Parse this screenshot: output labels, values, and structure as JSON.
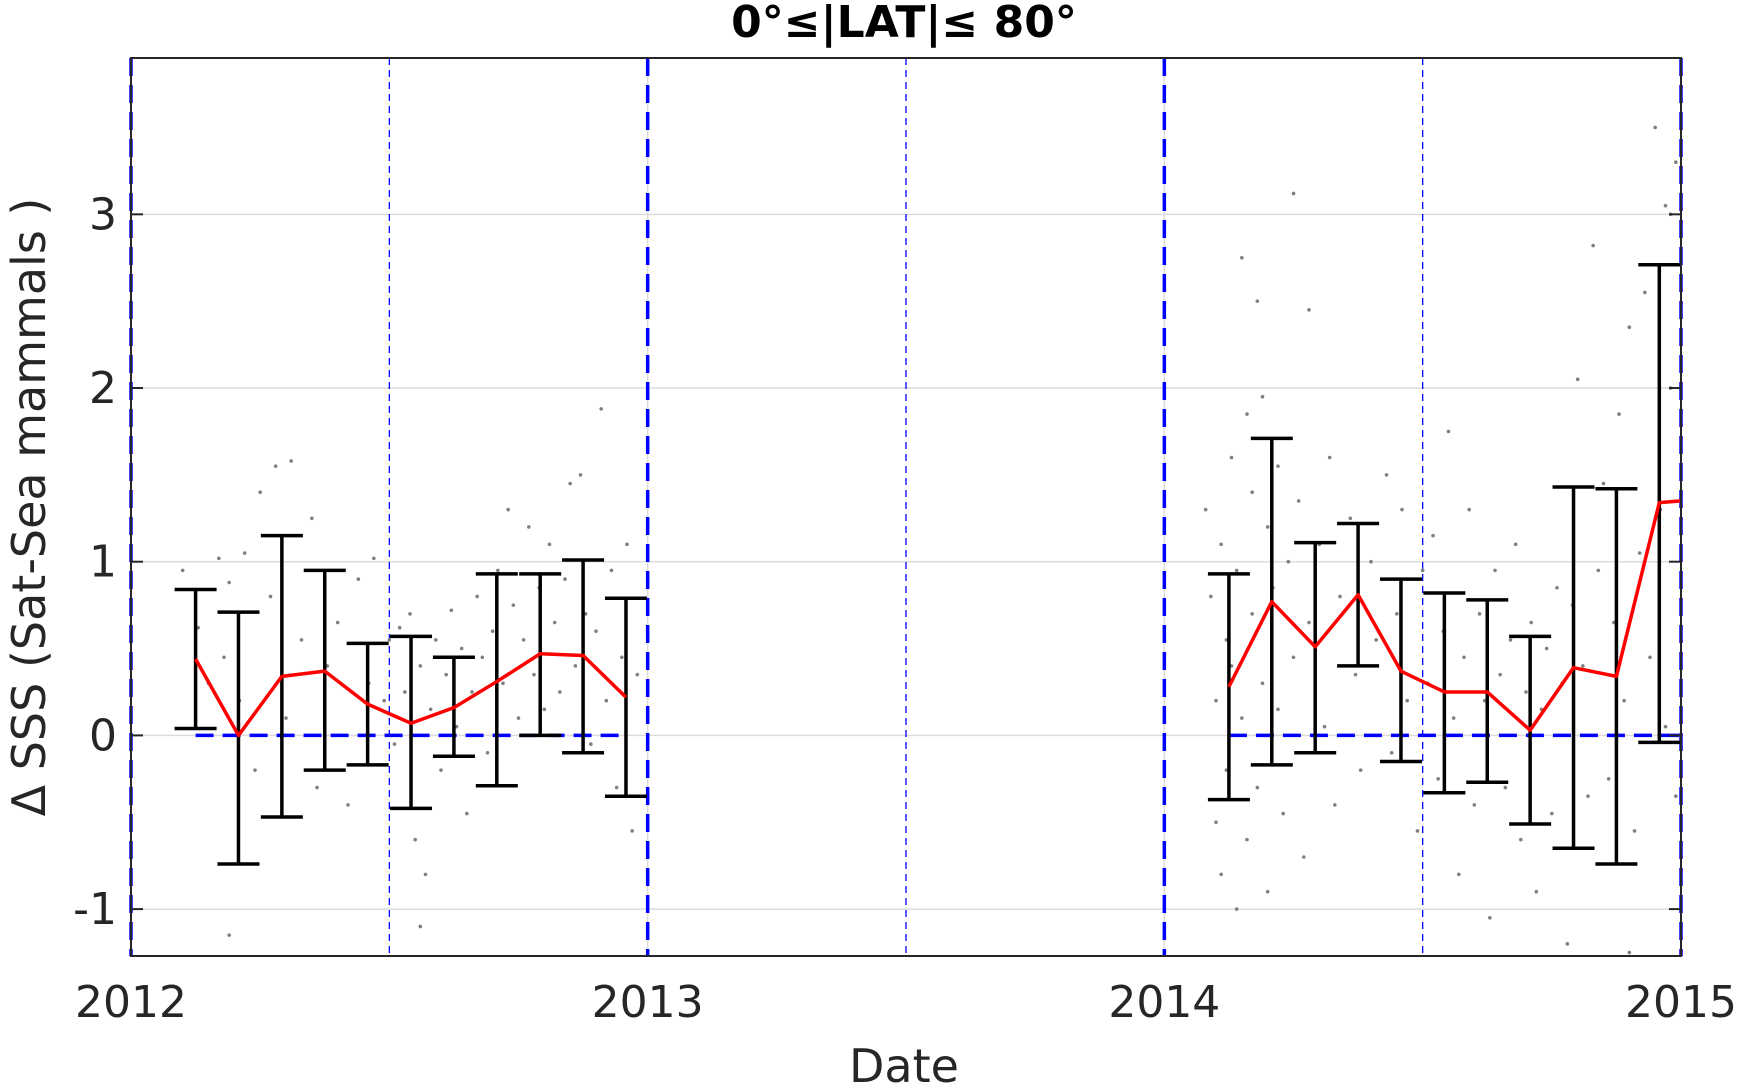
{
  "chart_data": {
    "type": "scatter",
    "title": "0°≤|LAT|≤ 80°",
    "xlabel": "Date",
    "ylabel": "Δ SSS (Sat-Sea mammals )",
    "xlim": [
      2012,
      2015
    ],
    "ylim": [
      -1.27,
      3.9
    ],
    "x_ticks": [
      "2012",
      "2013",
      "2014",
      "2015"
    ],
    "y_ticks": [
      "-1",
      "0",
      "1",
      "2",
      "3"
    ],
    "grid": true,
    "legend": "none",
    "year_boundaries": [
      2012,
      2013,
      2014,
      2015
    ],
    "half_year_lines": [
      2012.5,
      2013.5,
      2014.5
    ],
    "zero_line": 0,
    "series": [
      {
        "kind": "errorbar",
        "color": "#000000",
        "points": [
          {
            "x": 2012.125,
            "low": 0.04,
            "high": 0.84
          },
          {
            "x": 2012.208,
            "low": -0.74,
            "high": 0.71
          },
          {
            "x": 2012.292,
            "low": -0.47,
            "high": 1.15
          },
          {
            "x": 2012.375,
            "low": -0.2,
            "high": 0.95
          },
          {
            "x": 2012.458,
            "low": -0.17,
            "high": 0.53
          },
          {
            "x": 2012.542,
            "low": -0.42,
            "high": 0.57
          },
          {
            "x": 2012.625,
            "low": -0.12,
            "high": 0.45
          },
          {
            "x": 2012.708,
            "low": -0.29,
            "high": 0.93
          },
          {
            "x": 2012.792,
            "low": 0.0,
            "high": 0.93
          },
          {
            "x": 2012.875,
            "low": -0.1,
            "high": 1.01
          },
          {
            "x": 2012.958,
            "low": -0.35,
            "high": 0.79
          },
          {
            "x": 2014.125,
            "low": -0.37,
            "high": 0.93
          },
          {
            "x": 2014.208,
            "low": -0.17,
            "high": 1.71
          },
          {
            "x": 2014.292,
            "low": -0.1,
            "high": 1.11
          },
          {
            "x": 2014.375,
            "low": 0.4,
            "high": 1.22
          },
          {
            "x": 2014.458,
            "low": -0.15,
            "high": 0.9
          },
          {
            "x": 2014.542,
            "low": -0.33,
            "high": 0.82
          },
          {
            "x": 2014.625,
            "low": -0.27,
            "high": 0.78
          },
          {
            "x": 2014.708,
            "low": -0.51,
            "high": 0.57
          },
          {
            "x": 2014.792,
            "low": -0.65,
            "high": 1.43
          },
          {
            "x": 2014.875,
            "low": -0.74,
            "high": 1.42
          },
          {
            "x": 2014.958,
            "low": -0.04,
            "high": 2.71
          }
        ]
      },
      {
        "kind": "line",
        "color": "#ff0000",
        "segments": [
          {
            "x": [
              2012.125,
              2012.208,
              2012.292,
              2012.375,
              2012.458,
              2012.542,
              2012.625,
              2012.708,
              2012.792,
              2012.875,
              2012.958
            ],
            "y": [
              0.44,
              0.0,
              0.34,
              0.37,
              0.18,
              0.07,
              0.16,
              0.31,
              0.47,
              0.46,
              0.22
            ]
          },
          {
            "x": [
              2014.125,
              2014.208,
              2014.292,
              2014.375,
              2014.458,
              2014.542,
              2014.625,
              2014.708,
              2014.792,
              2014.875,
              2014.958,
              2015.0
            ],
            "y": [
              0.28,
              0.77,
              0.51,
              0.81,
              0.37,
              0.25,
              0.25,
              0.03,
              0.39,
              0.34,
              1.34,
              1.35
            ]
          }
        ]
      },
      {
        "kind": "scatter",
        "color": "#808080",
        "points": [
          [
            2012.1,
            0.95
          ],
          [
            2012.13,
            0.62
          ],
          [
            2012.15,
            0.3
          ],
          [
            2012.17,
            1.02
          ],
          [
            2012.18,
            0.45
          ],
          [
            2012.19,
            0.88
          ],
          [
            2012.21,
            0.2
          ],
          [
            2012.22,
            1.05
          ],
          [
            2012.24,
            -0.2
          ],
          [
            2012.19,
            -1.15
          ],
          [
            2012.25,
            1.4
          ],
          [
            2012.27,
            0.8
          ],
          [
            2012.28,
            1.55
          ],
          [
            2012.3,
            0.1
          ],
          [
            2012.31,
            1.58
          ],
          [
            2012.33,
            0.55
          ],
          [
            2012.35,
            1.25
          ],
          [
            2012.36,
            -0.3
          ],
          [
            2012.38,
            0.4
          ],
          [
            2012.4,
            0.65
          ],
          [
            2012.42,
            -0.4
          ],
          [
            2012.44,
            0.9
          ],
          [
            2012.46,
            0.3
          ],
          [
            2012.47,
            1.02
          ],
          [
            2012.49,
            0.2
          ],
          [
            2012.5,
            0.55
          ],
          [
            2012.51,
            -0.05
          ],
          [
            2012.52,
            0.62
          ],
          [
            2012.53,
            0.25
          ],
          [
            2012.54,
            0.7
          ],
          [
            2012.55,
            -0.6
          ],
          [
            2012.56,
            0.4
          ],
          [
            2012.57,
            -0.8
          ],
          [
            2012.58,
            0.15
          ],
          [
            2012.59,
            0.55
          ],
          [
            2012.6,
            -0.2
          ],
          [
            2012.61,
            0.35
          ],
          [
            2012.62,
            0.72
          ],
          [
            2012.63,
            0.05
          ],
          [
            2012.64,
            0.5
          ],
          [
            2012.65,
            -0.45
          ],
          [
            2012.66,
            0.25
          ],
          [
            2012.67,
            0.8
          ],
          [
            2012.68,
            0.45
          ],
          [
            2012.69,
            -0.1
          ],
          [
            2012.7,
            0.6
          ],
          [
            2012.71,
            0.95
          ],
          [
            2012.72,
            0.3
          ],
          [
            2012.73,
            1.3
          ],
          [
            2012.74,
            0.75
          ],
          [
            2012.75,
            0.1
          ],
          [
            2012.76,
            0.55
          ],
          [
            2012.77,
            1.2
          ],
          [
            2012.78,
            0.35
          ],
          [
            2012.79,
            0.85
          ],
          [
            2012.8,
            0.15
          ],
          [
            2012.81,
            1.1
          ],
          [
            2012.82,
            0.65
          ],
          [
            2012.83,
            0.25
          ],
          [
            2012.84,
            0.9
          ],
          [
            2012.85,
            1.45
          ],
          [
            2012.86,
            0.4
          ],
          [
            2012.87,
            1.5
          ],
          [
            2012.88,
            0.7
          ],
          [
            2012.89,
            -0.05
          ],
          [
            2012.9,
            0.6
          ],
          [
            2012.91,
            1.88
          ],
          [
            2012.92,
            0.2
          ],
          [
            2012.93,
            0.95
          ],
          [
            2012.94,
            -0.3
          ],
          [
            2012.95,
            0.45
          ],
          [
            2012.96,
            1.1
          ],
          [
            2012.97,
            -0.55
          ],
          [
            2012.98,
            0.35
          ],
          [
            2012.56,
            -1.1
          ],
          [
            2014.08,
            1.3
          ],
          [
            2014.09,
            0.8
          ],
          [
            2014.1,
            -0.5
          ],
          [
            2014.1,
            0.2
          ],
          [
            2014.11,
            1.1
          ],
          [
            2014.11,
            -0.8
          ],
          [
            2014.12,
            0.55
          ],
          [
            2014.12,
            -0.2
          ],
          [
            2014.13,
            1.6
          ],
          [
            2014.13,
            0.4
          ],
          [
            2014.14,
            -1.0
          ],
          [
            2014.14,
            0.95
          ],
          [
            2014.15,
            2.75
          ],
          [
            2014.15,
            0.1
          ],
          [
            2014.16,
            1.85
          ],
          [
            2014.16,
            -0.6
          ],
          [
            2014.17,
            1.4
          ],
          [
            2014.17,
            0.7
          ],
          [
            2014.18,
            2.5
          ],
          [
            2014.18,
            -0.3
          ],
          [
            2014.19,
            1.95
          ],
          [
            2014.19,
            0.3
          ],
          [
            2014.2,
            1.2
          ],
          [
            2014.2,
            -0.9
          ],
          [
            2014.21,
            0.85
          ],
          [
            2014.22,
            1.55
          ],
          [
            2014.22,
            0.15
          ],
          [
            2014.23,
            -0.45
          ],
          [
            2014.24,
            1.0
          ],
          [
            2014.25,
            3.12
          ],
          [
            2014.25,
            0.45
          ],
          [
            2014.26,
            1.35
          ],
          [
            2014.27,
            -0.7
          ],
          [
            2014.28,
            2.45
          ],
          [
            2014.28,
            0.65
          ],
          [
            2014.3,
            1.1
          ],
          [
            2014.31,
            0.05
          ],
          [
            2014.32,
            1.6
          ],
          [
            2014.33,
            -0.4
          ],
          [
            2014.34,
            0.8
          ],
          [
            2014.36,
            1.25
          ],
          [
            2014.37,
            0.35
          ],
          [
            2014.38,
            -0.2
          ],
          [
            2014.4,
            1.0
          ],
          [
            2014.41,
            0.55
          ],
          [
            2014.43,
            1.5
          ],
          [
            2014.44,
            -0.1
          ],
          [
            2014.45,
            0.7
          ],
          [
            2014.46,
            1.3
          ],
          [
            2014.47,
            0.2
          ],
          [
            2014.49,
            -0.55
          ],
          [
            2014.5,
            0.95
          ],
          [
            2014.51,
            0.3
          ],
          [
            2014.52,
            1.15
          ],
          [
            2014.53,
            -0.25
          ],
          [
            2014.54,
            0.6
          ],
          [
            2014.55,
            1.75
          ],
          [
            2014.56,
            0.1
          ],
          [
            2014.57,
            -0.8
          ],
          [
            2014.58,
            0.45
          ],
          [
            2014.59,
            1.3
          ],
          [
            2014.6,
            -0.4
          ],
          [
            2014.61,
            0.7
          ],
          [
            2014.62,
            0.2
          ],
          [
            2014.63,
            -1.05
          ],
          [
            2014.64,
            0.95
          ],
          [
            2014.65,
            0.35
          ],
          [
            2014.66,
            -0.3
          ],
          [
            2014.67,
            0.55
          ],
          [
            2014.68,
            1.1
          ],
          [
            2014.69,
            -0.6
          ],
          [
            2014.7,
            0.25
          ],
          [
            2014.71,
            0.65
          ],
          [
            2014.72,
            -0.9
          ],
          [
            2014.73,
            0.15
          ],
          [
            2014.74,
            0.5
          ],
          [
            2014.75,
            -0.45
          ],
          [
            2014.76,
            0.85
          ],
          [
            2014.77,
            0.3
          ],
          [
            2014.78,
            -1.2
          ],
          [
            2014.79,
            0.75
          ],
          [
            2014.8,
            2.05
          ],
          [
            2014.81,
            0.4
          ],
          [
            2014.82,
            -0.35
          ],
          [
            2014.83,
            2.82
          ],
          [
            2014.84,
            0.95
          ],
          [
            2014.85,
            1.45
          ],
          [
            2014.86,
            -0.25
          ],
          [
            2014.87,
            0.65
          ],
          [
            2014.88,
            1.85
          ],
          [
            2014.89,
            0.2
          ],
          [
            2014.9,
            2.35
          ],
          [
            2014.91,
            -0.55
          ],
          [
            2014.92,
            1.05
          ],
          [
            2014.93,
            2.55
          ],
          [
            2014.94,
            0.45
          ],
          [
            2014.95,
            3.5
          ],
          [
            2014.96,
            1.3
          ],
          [
            2014.97,
            0.05
          ],
          [
            2014.98,
            2.0
          ],
          [
            2014.98,
            3.0
          ],
          [
            2014.99,
            3.3
          ],
          [
            2014.99,
            -0.35
          ],
          [
            2014.9,
            -1.25
          ],
          [
            2014.97,
            3.05
          ]
        ]
      }
    ]
  }
}
